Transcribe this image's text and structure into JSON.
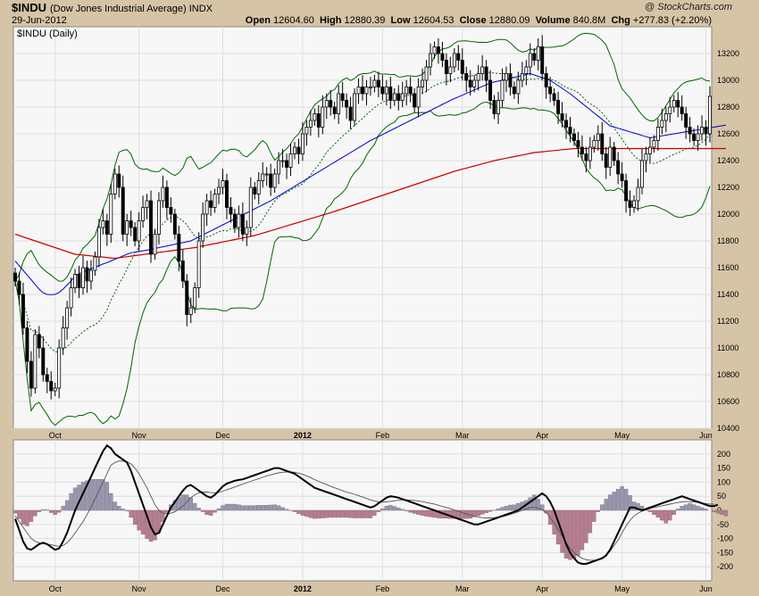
{
  "header": {
    "ticker": "$INDU",
    "name": "(Dow Jones Industrial Average) INDX",
    "date": "29-Jun-2012",
    "watermark": "@ StockCharts.com",
    "open_label": "Open",
    "open": "12604.60",
    "high_label": "High",
    "high": "12880.39",
    "low_label": "Low",
    "low": "12604.53",
    "close_label": "Close",
    "close": "12880.09",
    "volume_label": "Volume",
    "volume": "840.8M",
    "chg_label": "Chg",
    "chg": "+277.83 (+2.20%)"
  },
  "colors": {
    "background": "#d5c4a6",
    "panel": "#f7f7f7",
    "grid": "#dedede",
    "up": "#ffffff",
    "down": "#000000",
    "ma_short": "#0000cc",
    "ma_long": "#cc0000",
    "bollinger": "#006600",
    "hist_pos": "#9a97ad",
    "hist_neg": "#b57f90"
  },
  "chart_data": [
    {
      "type": "candlestick",
      "legend": "$INDU (Daily)",
      "ylim": [
        10400,
        13400
      ],
      "y_ticks": [
        10400,
        10600,
        10800,
        11000,
        11200,
        11400,
        11600,
        11800,
        12000,
        12200,
        12400,
        12600,
        12800,
        13000,
        13200
      ],
      "x_labels": [
        "Oct",
        "Nov",
        "Dec",
        "2012",
        "Feb",
        "Mar",
        "Apr",
        "May",
        "Jun"
      ],
      "x_label_index": [
        10,
        31,
        52,
        72,
        92,
        112,
        132,
        152,
        173
      ],
      "closes": [
        11500,
        11400,
        11150,
        10900,
        10700,
        11100,
        11000,
        10800,
        10750,
        10680,
        10700,
        11000,
        11150,
        11300,
        11450,
        11550,
        11450,
        11600,
        11500,
        11580,
        11680,
        11900,
        11950,
        11850,
        12150,
        12300,
        12200,
        11850,
        11950,
        11900,
        11800,
        11950,
        12050,
        12100,
        11700,
        11850,
        12100,
        12200,
        12050,
        12000,
        11850,
        11650,
        11500,
        11250,
        11300,
        11450,
        11800,
        12000,
        12100,
        12050,
        12150,
        12200,
        12250,
        12050,
        12000,
        11900,
        12000,
        11850,
        11900,
        12200,
        12150,
        12250,
        12300,
        12300,
        12200,
        12300,
        12400,
        12400,
        12350,
        12450,
        12500,
        12450,
        12600,
        12650,
        12700,
        12750,
        12650,
        12800,
        12850,
        12800,
        12750,
        12900,
        12850,
        12800,
        12700,
        12900,
        12950,
        12900,
        12950,
        12950,
        13000,
        12950,
        12900,
        12950,
        12850,
        12900,
        12850,
        12900,
        12950,
        12900,
        12800,
        12950,
        13000,
        13100,
        13200,
        13250,
        13200,
        13150,
        13050,
        13100,
        13200,
        13150,
        13050,
        13000,
        12950,
        13000,
        13050,
        13100,
        13000,
        12850,
        12750,
        12850,
        13000,
        13050,
        12950,
        12900,
        13000,
        13050,
        13100,
        13200,
        13150,
        13250,
        13050,
        12950,
        12900,
        12850,
        12750,
        12700,
        12650,
        12600,
        12550,
        12500,
        12450,
        12400,
        12500,
        12550,
        12600,
        12450,
        12350,
        12500,
        12400,
        12300,
        12250,
        12100,
        12050,
        12100,
        12200,
        12400,
        12450,
        12500,
        12550,
        12650,
        12700,
        12750,
        12800,
        12850,
        12800,
        12750,
        12650,
        12600,
        12550,
        12600,
        12650,
        12600,
        12880
      ],
      "ma_50": [
        11650,
        11615,
        11580,
        11545,
        11510,
        11475,
        11440,
        11412,
        11400,
        11398,
        11400,
        11415,
        11440,
        11470,
        11500,
        11540,
        11555,
        11568,
        11580,
        11592,
        11603,
        11615,
        11627,
        11638,
        11650,
        11663,
        11675,
        11688,
        11700,
        11711,
        11716,
        11721,
        11726,
        11731,
        11737,
        11743,
        11750,
        11756,
        11762,
        11768,
        11775,
        11781,
        11787,
        11793,
        11800,
        11815,
        11830,
        11845,
        11860,
        11875,
        11890,
        11905,
        11920,
        11935,
        11950,
        11965,
        11980,
        11995,
        12010,
        12025,
        12040,
        12055,
        12070,
        12085,
        12100,
        12118,
        12136,
        12154,
        12172,
        12190,
        12208,
        12226,
        12244,
        12262,
        12280,
        12298,
        12316,
        12334,
        12352,
        12370,
        12388,
        12406,
        12424,
        12442,
        12460,
        12478,
        12496,
        12514,
        12532,
        12550,
        12565,
        12580,
        12595,
        12610,
        12625,
        12640,
        12655,
        12670,
        12685,
        12700,
        12715,
        12730,
        12745,
        12760,
        12775,
        12790,
        12805,
        12820,
        12835,
        12850,
        12863,
        12876,
        12889,
        12902,
        12915,
        12928,
        12941,
        12954,
        12967,
        12980,
        12987,
        12994,
        13001,
        13008,
        13015,
        13022,
        13029,
        13036,
        13043,
        13050,
        13040,
        13030,
        13020,
        13010,
        13000,
        12980,
        12960,
        12940,
        12920,
        12900,
        12876,
        12852,
        12828,
        12804,
        12780,
        12756,
        12732,
        12708,
        12684,
        12660,
        12651,
        12642,
        12633,
        12624,
        12615,
        12606,
        12597,
        12588,
        12579,
        12570,
        12575,
        12580,
        12585,
        12590,
        12595,
        12600,
        12605,
        12610,
        12615,
        12620,
        12625,
        12630,
        12635,
        12640,
        12645,
        12650,
        12655,
        12660,
        12665
      ],
      "ma_200": [
        11850,
        11840,
        11830,
        11820,
        11810,
        11800,
        11790,
        11780,
        11770,
        11760,
        11750,
        11740,
        11730,
        11720,
        11710,
        11700,
        11697,
        11694,
        11691,
        11688,
        11685,
        11682,
        11679,
        11676,
        11673,
        11670,
        11674,
        11678,
        11682,
        11686,
        11690,
        11694,
        11698,
        11702,
        11706,
        11710,
        11714,
        11718,
        11722,
        11726,
        11730,
        11734,
        11738,
        11742,
        11746,
        11750,
        11756,
        11762,
        11768,
        11774,
        11780,
        11786,
        11792,
        11798,
        11804,
        11810,
        11816,
        11822,
        11828,
        11834,
        11840,
        11849,
        11858,
        11867,
        11876,
        11885,
        11894,
        11903,
        11912,
        11921,
        11930,
        11939,
        11948,
        11957,
        11966,
        11975,
        11984,
        11993,
        12002,
        12011,
        12020,
        12030,
        12040,
        12050,
        12060,
        12070,
        12080,
        12090,
        12100,
        12110,
        12120,
        12130,
        12140,
        12150,
        12160,
        12170,
        12180,
        12190,
        12200,
        12210,
        12220,
        12230,
        12240,
        12250,
        12260,
        12270,
        12280,
        12290,
        12300,
        12310,
        12320,
        12328,
        12336,
        12344,
        12352,
        12360,
        12368,
        12376,
        12384,
        12392,
        12400,
        12406,
        12412,
        12418,
        12424,
        12430,
        12436,
        12442,
        12448,
        12454,
        12460,
        12463,
        12466,
        12469,
        12472,
        12475,
        12478,
        12481,
        12484,
        12487,
        12490,
        12490,
        12490,
        12490,
        12490,
        12490,
        12490,
        12490,
        12490,
        12490,
        12490,
        12490,
        12490,
        12490,
        12490,
        12490,
        12490,
        12490,
        12490,
        12490,
        12490,
        12490,
        12490,
        12490,
        12490,
        12490,
        12490,
        12490,
        12490,
        12490,
        12490,
        12490,
        12490,
        12490,
        12490,
        12490,
        12490,
        12490,
        12490
      ]
    },
    {
      "type": "macd",
      "ylim": [
        -250,
        250
      ],
      "y_ticks": [
        -200,
        -150,
        -100,
        -50,
        0,
        50,
        100,
        150,
        200
      ],
      "y_tick_labels": [
        "-200",
        "-150",
        "-100",
        "-50",
        "0",
        "50",
        "100",
        "150",
        "200"
      ],
      "x_labels": [
        "Oct",
        "Nov",
        "Dec",
        "2012",
        "Feb",
        "Mar",
        "Apr",
        "May",
        "Jun"
      ],
      "x_label_index": [
        10,
        31,
        52,
        72,
        92,
        112,
        132,
        152,
        173
      ],
      "macd": [
        -30,
        -70,
        -110,
        -135,
        -140,
        -130,
        -120,
        -115,
        -120,
        -130,
        -140,
        -135,
        -110,
        -80,
        -40,
        0,
        30,
        60,
        90,
        120,
        150,
        180,
        210,
        230,
        220,
        200,
        190,
        180,
        170,
        140,
        100,
        60,
        20,
        -20,
        -60,
        -85,
        -80,
        -50,
        -20,
        10,
        30,
        50,
        70,
        85,
        90,
        80,
        70,
        60,
        50,
        45,
        55,
        70,
        85,
        95,
        100,
        105,
        108,
        110,
        115,
        120,
        125,
        130,
        135,
        140,
        145,
        150,
        150,
        145,
        140,
        135,
        130,
        120,
        110,
        100,
        90,
        80,
        75,
        70,
        65,
        60,
        55,
        50,
        45,
        40,
        35,
        30,
        25,
        20,
        15,
        10,
        15,
        25,
        35,
        45,
        50,
        48,
        45,
        40,
        35,
        30,
        25,
        20,
        15,
        10,
        5,
        0,
        -5,
        -10,
        -15,
        -20,
        -25,
        -30,
        -35,
        -40,
        -45,
        -50,
        -50,
        -45,
        -40,
        -35,
        -30,
        -25,
        -20,
        -15,
        -10,
        -5,
        0,
        10,
        20,
        30,
        40,
        50,
        60,
        50,
        30,
        0,
        -40,
        -80,
        -120,
        -150,
        -170,
        -185,
        -190,
        -190,
        -185,
        -180,
        -175,
        -170,
        -160,
        -140,
        -110,
        -80,
        -50,
        -20,
        10,
        10,
        5,
        0,
        5,
        10,
        15,
        20,
        25,
        30,
        35,
        40,
        45,
        50,
        45,
        40,
        35,
        30,
        25,
        20,
        15,
        15,
        20
      ],
      "signal": [
        -20,
        -40,
        -60,
        -80,
        -100,
        -110,
        -115,
        -118,
        -120,
        -122,
        -125,
        -128,
        -125,
        -115,
        -100,
        -80,
        -60,
        -40,
        -15,
        10,
        40,
        70,
        100,
        130,
        160,
        170,
        175,
        175,
        172,
        165,
        150,
        130,
        105,
        80,
        50,
        20,
        0,
        -10,
        -12,
        -10,
        -5,
        5,
        15,
        30,
        45,
        55,
        62,
        65,
        65,
        63,
        62,
        64,
        68,
        73,
        78,
        83,
        88,
        93,
        98,
        103,
        108,
        112,
        117,
        122,
        126,
        130,
        133,
        135,
        136,
        136,
        135,
        132,
        128,
        122,
        116,
        109,
        103,
        97,
        91,
        85,
        80,
        75,
        70,
        65,
        61,
        57,
        52,
        47,
        42,
        37,
        33,
        30,
        29,
        30,
        32,
        34,
        36,
        37,
        37,
        36,
        35,
        33,
        31,
        28,
        25,
        22,
        18,
        14,
        10,
        6,
        1,
        -3,
        -8,
        -13,
        -17,
        -21,
        -24,
        -26,
        -27,
        -27,
        -26,
        -24,
        -22,
        -19,
        -15,
        -10,
        -5,
        0,
        5,
        10,
        10,
        8,
        2,
        -8,
        -25,
        -45,
        -68,
        -92,
        -115,
        -135,
        -150,
        -162,
        -170,
        -175,
        -177,
        -177,
        -175,
        -170,
        -160,
        -145,
        -125,
        -105,
        -80,
        -55,
        -35,
        -20,
        -10,
        -3,
        2,
        6,
        10,
        13,
        16,
        19,
        22,
        25,
        28,
        30,
        31,
        31,
        30,
        28,
        26,
        24,
        22,
        22
      ],
      "histogram": [
        -10,
        -30,
        -50,
        -55,
        -40,
        -20,
        -5,
        3,
        2,
        -8,
        -15,
        -7,
        15,
        35,
        60,
        80,
        90,
        100,
        105,
        110,
        110,
        110,
        110,
        100,
        60,
        30,
        15,
        5,
        -2,
        -25,
        -50,
        -70,
        -85,
        -100,
        -110,
        -105,
        -80,
        -40,
        -8,
        20,
        35,
        45,
        55,
        55,
        45,
        25,
        8,
        -5,
        -15,
        -18,
        -7,
        6,
        17,
        22,
        22,
        22,
        20,
        17,
        17,
        17,
        17,
        18,
        18,
        18,
        19,
        20,
        17,
        10,
        4,
        -1,
        -5,
        -12,
        -18,
        -22,
        -26,
        -29,
        -28,
        -27,
        -26,
        -25,
        -25,
        -25,
        -25,
        -25,
        -26,
        -27,
        -27,
        -27,
        -27,
        -27,
        -18,
        -5,
        6,
        15,
        18,
        14,
        9,
        4,
        -2,
        -7,
        -11,
        -15,
        -18,
        -21,
        -23,
        -25,
        -27,
        -28,
        -28,
        -29,
        -29,
        -29,
        -29,
        -29,
        -28,
        -23,
        -19,
        -14,
        -9,
        -4,
        1,
        6,
        11,
        15,
        19,
        20,
        25,
        30,
        35,
        45,
        55,
        40,
        20,
        -10,
        -50,
        -85,
        -120,
        -150,
        -170,
        -175,
        -170,
        -160,
        -140,
        -115,
        -80,
        -40,
        -5,
        20,
        40,
        55,
        65,
        75,
        85,
        75,
        53,
        30,
        25,
        15,
        5,
        -5,
        -15,
        -25,
        -35,
        -45,
        -35,
        -15,
        5,
        15,
        20,
        25,
        20,
        15,
        10,
        5,
        0,
        -5,
        -10,
        -15,
        -20
      ]
    }
  ]
}
